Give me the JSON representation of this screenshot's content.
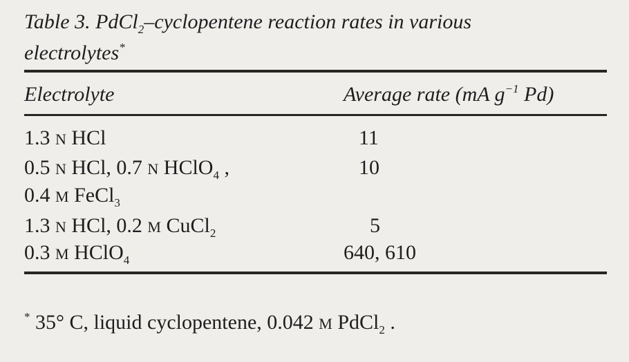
{
  "title": {
    "prefix": "Table 3. PdCl",
    "sub": "2",
    "rest": "–cyclopentene reaction rates in various",
    "line2": "electrolytes",
    "star": "*"
  },
  "headers": {
    "electrolyte": "Electrolyte",
    "rate_pre": "Average rate (mA g",
    "rate_sup": "−1",
    "rate_post": "  Pd)"
  },
  "rows": [
    {
      "lines": [
        [
          [
            "1.3 ",
            ""
          ],
          [
            "N",
            "sc"
          ],
          [
            " HCl",
            ""
          ]
        ]
      ],
      "rate": "11"
    },
    {
      "lines": [
        [
          [
            "0.5 ",
            ""
          ],
          [
            "N",
            "sc"
          ],
          [
            " HCl, 0.7 ",
            ""
          ],
          [
            "N",
            "sc"
          ],
          [
            " HClO",
            ""
          ],
          [
            "4",
            "sub"
          ],
          [
            " ,",
            ""
          ]
        ],
        [
          [
            "0.4 ",
            ""
          ],
          [
            "M",
            "sc"
          ],
          [
            " FeCl",
            ""
          ],
          [
            "3",
            "sub"
          ]
        ]
      ],
      "rate": "10"
    },
    {
      "lines": [
        [
          [
            "1.3 ",
            ""
          ],
          [
            "N",
            "sc"
          ],
          [
            " HCl, 0.2 ",
            ""
          ],
          [
            "M",
            "sc"
          ],
          [
            " CuCl",
            ""
          ],
          [
            "2",
            "sub"
          ]
        ]
      ],
      "rate": "5"
    },
    {
      "lines": [
        [
          [
            "0.3 ",
            ""
          ],
          [
            "M",
            "sc"
          ],
          [
            " HClO",
            ""
          ],
          [
            "4",
            "sub"
          ]
        ]
      ],
      "rate": "640, 610"
    }
  ],
  "footnote": {
    "star": "*",
    "text": " 35° C, liquid cyclopentene, 0.042 ",
    "unit": "M",
    "chem": " PdCl",
    "sub": "2",
    "end": " ."
  }
}
